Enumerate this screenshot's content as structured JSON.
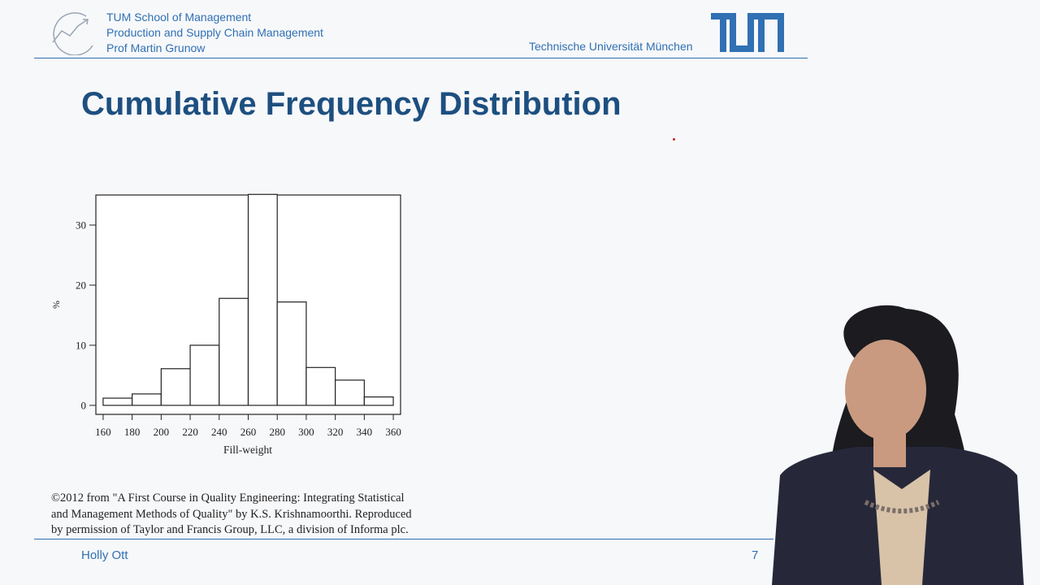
{
  "header": {
    "lines": [
      "TUM School of Management",
      "Production and Supply Chain Management",
      "Prof Martin Grunow"
    ],
    "university": "Technische Universität München",
    "brand_color": "#3070b3"
  },
  "slide": {
    "title": "Cumulative Frequency Distribution",
    "title_color": "#1d4f80",
    "citation": [
      "©2012 from \"A First Course in Quality Engineering: Integrating Statistical",
      "and Management Methods of Quality\" by K.S. Krishnamoorthi. Reproduced",
      "by permission of Taylor and Francis Group, LLC, a division of Informa plc."
    ]
  },
  "footer": {
    "presenter": "Holly Ott",
    "page": "7"
  },
  "chart_data": {
    "type": "bar",
    "bins": [
      [
        160,
        180
      ],
      [
        180,
        200
      ],
      [
        200,
        220
      ],
      [
        220,
        240
      ],
      [
        240,
        260
      ],
      [
        260,
        280
      ],
      [
        280,
        300
      ],
      [
        300,
        320
      ],
      [
        320,
        340
      ],
      [
        340,
        360
      ]
    ],
    "values": [
      1.2,
      1.9,
      6.1,
      10.0,
      17.8,
      35.1,
      17.2,
      6.3,
      4.2,
      1.4
    ],
    "xticks": [
      160,
      180,
      200,
      220,
      240,
      260,
      280,
      300,
      320,
      340,
      360
    ],
    "yticks": [
      0,
      10,
      20,
      30
    ],
    "xlabel": "Fill-weight",
    "ylabel": "%",
    "xlim": [
      155,
      365
    ],
    "ylim": [
      -1.5,
      35
    ]
  },
  "icons": [
    "tum-school-logo-icon",
    "tum-logo-icon"
  ]
}
